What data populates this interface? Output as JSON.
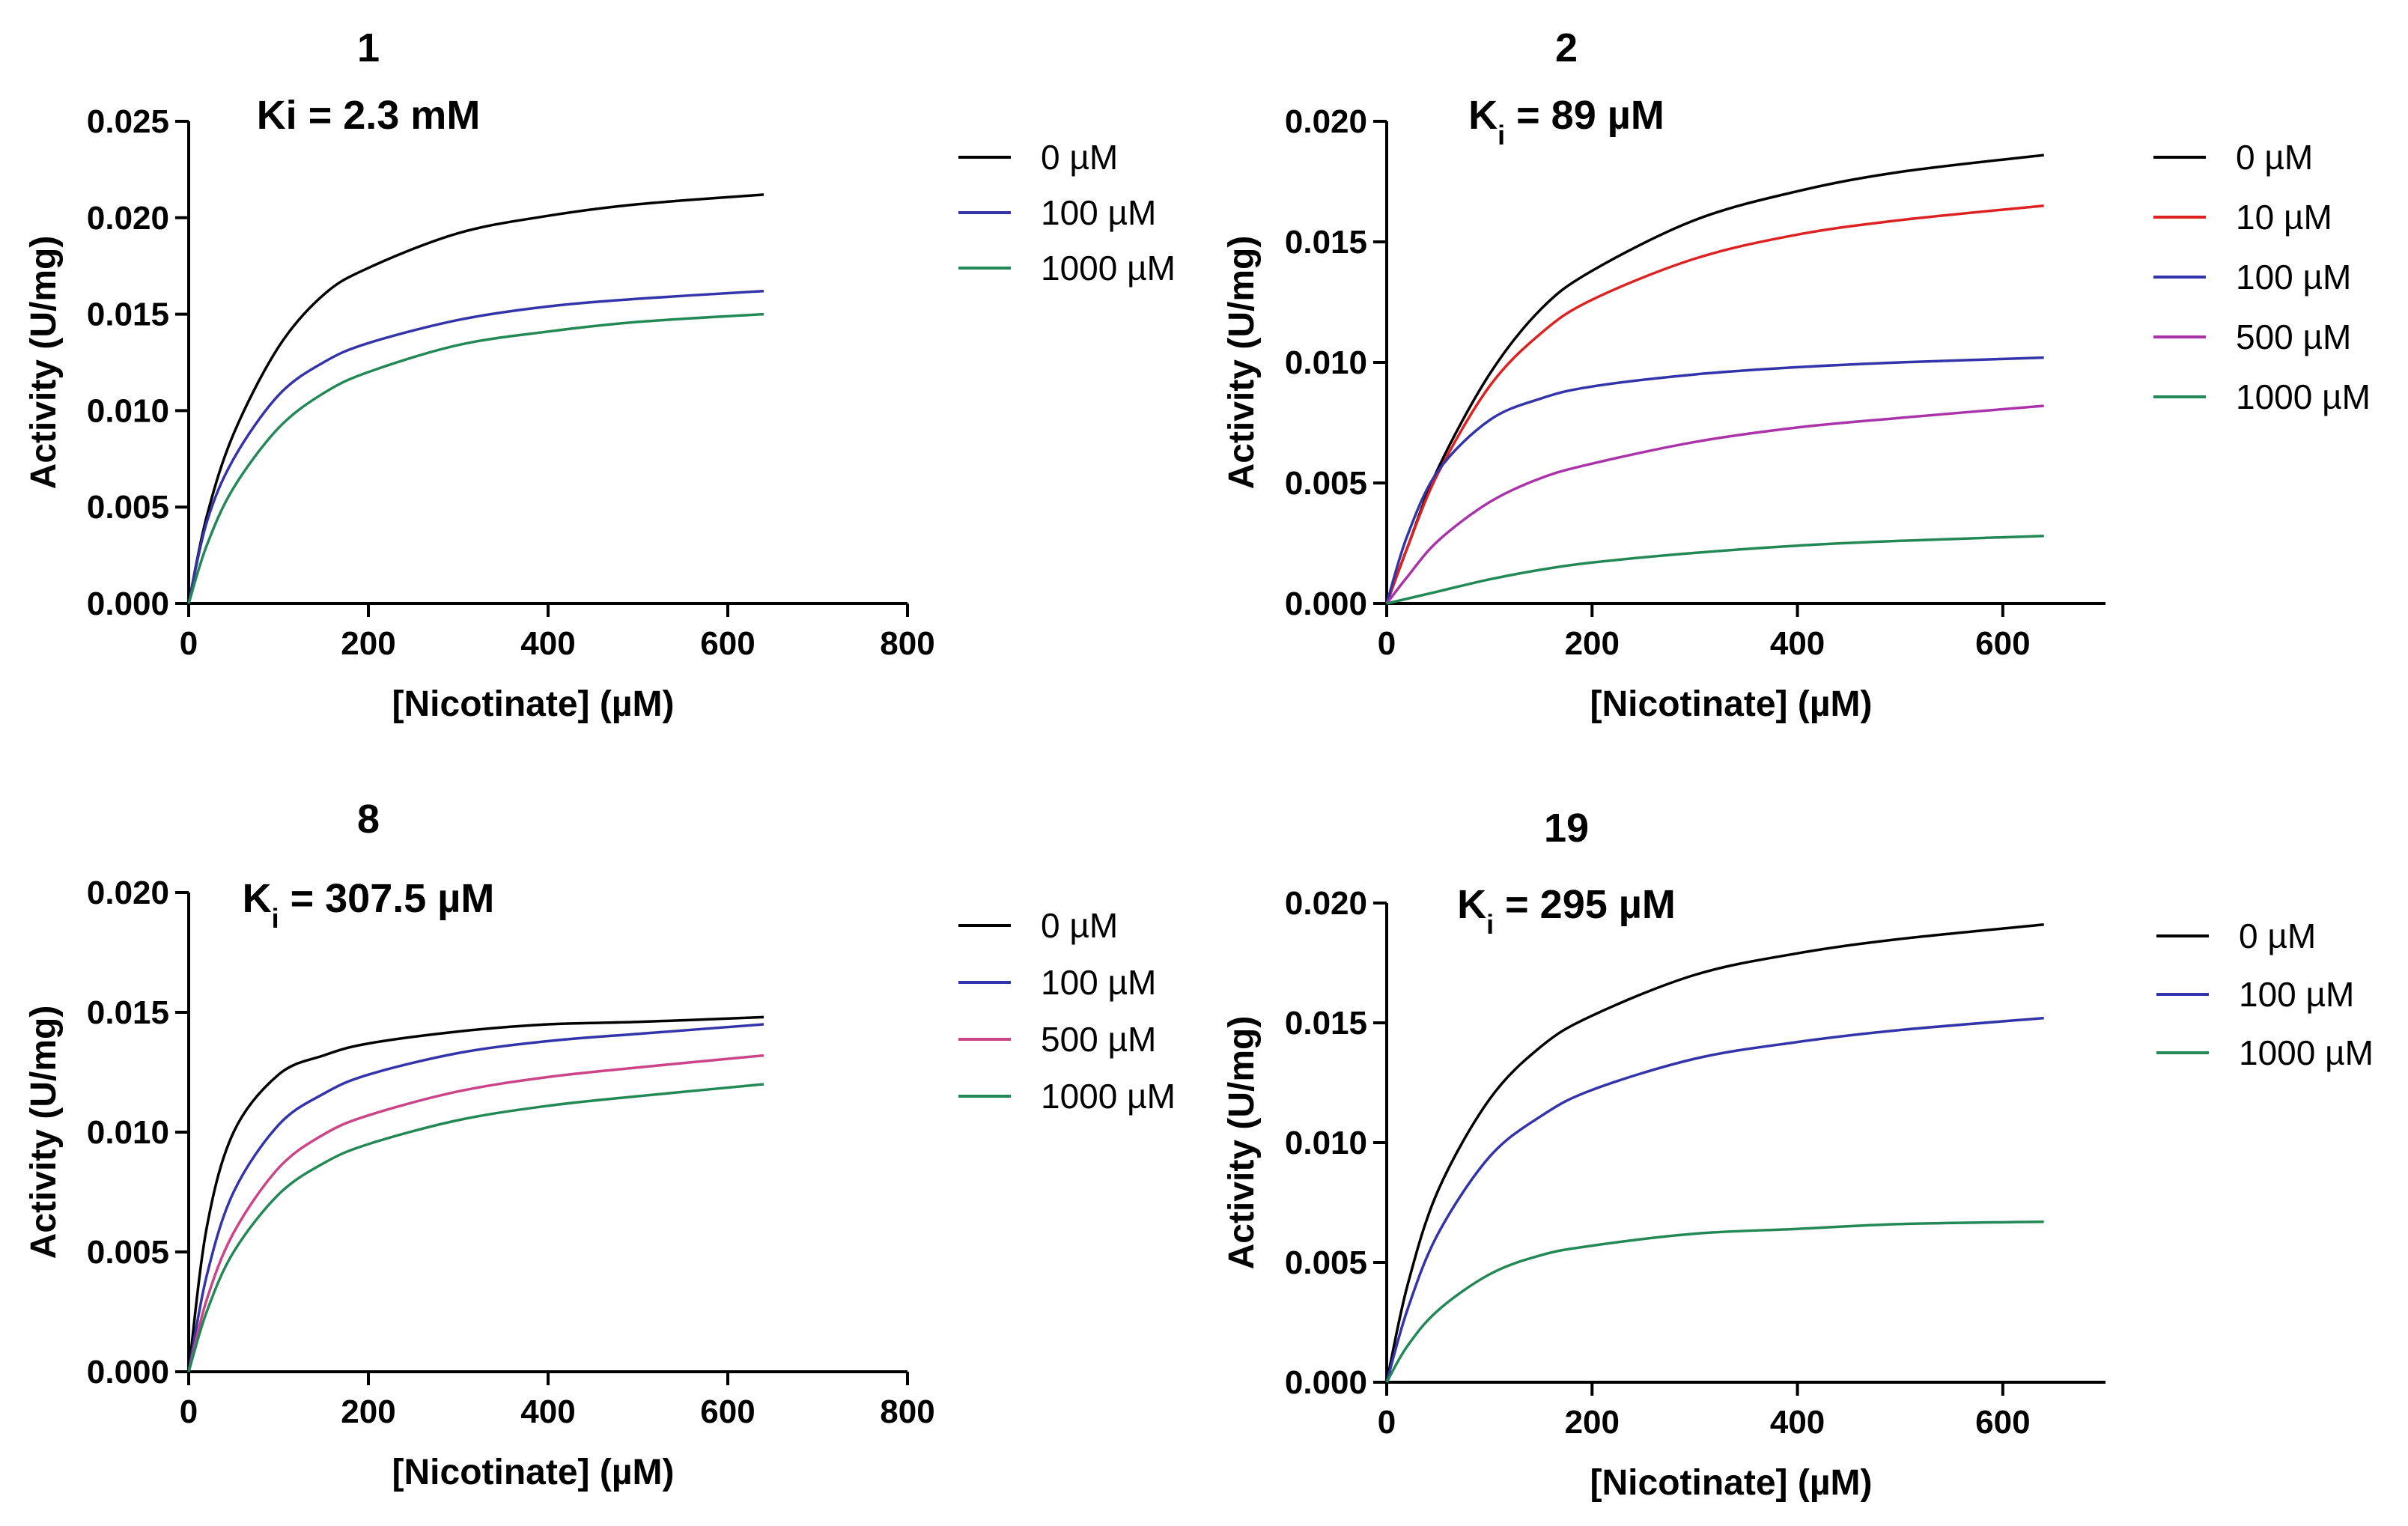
{
  "chart_data": [
    {
      "type": "line",
      "title": "1",
      "subtitle": "Ki = 2.3 mM",
      "xlabel": "[Nicotinate] (µM)",
      "ylabel": "Activity (U/mg)",
      "xlim": [
        0,
        800
      ],
      "ylim": [
        0,
        0.025
      ],
      "xticks": [
        0,
        200,
        400,
        600,
        800
      ],
      "xtick_labels": [
        "0",
        "200",
        "400",
        "600",
        "800"
      ],
      "yticks": [
        0,
        0.005,
        0.01,
        0.015,
        0.02,
        0.025
      ],
      "ytick_labels": [
        "0.000",
        "0.005",
        "0.010",
        "0.015",
        "0.020",
        "0.025"
      ],
      "x": [
        0,
        20,
        50,
        100,
        150,
        200,
        300,
        400,
        500,
        640
      ],
      "series": [
        {
          "name": "0 µM",
          "color": "#000000",
          "values": [
            0,
            0.0045,
            0.0088,
            0.0133,
            0.016,
            0.0174,
            0.0192,
            0.0201,
            0.0207,
            0.0212
          ]
        },
        {
          "name": "100 µM",
          "color": "#3333aa",
          "values": [
            0,
            0.0042,
            0.0075,
            0.0108,
            0.0125,
            0.0135,
            0.0147,
            0.0154,
            0.0158,
            0.0162
          ]
        },
        {
          "name": "1000 µM",
          "color": "#228855",
          "values": [
            0,
            0.003,
            0.006,
            0.0091,
            0.0109,
            0.012,
            0.0134,
            0.0141,
            0.0146,
            0.015
          ]
        }
      ],
      "legend": "right"
    },
    {
      "type": "line",
      "title": "2",
      "subtitle_main": "K",
      "subtitle_sub": "i",
      "subtitle_rest": " = 89 µM",
      "xlabel": "[Nicotinate] (µM)",
      "ylabel": "Activity (U/mg)",
      "xlim": [
        0,
        700
      ],
      "ylim": [
        0,
        0.02
      ],
      "xticks": [
        0,
        200,
        400,
        600
      ],
      "xtick_labels": [
        "0",
        "200",
        "400",
        "600"
      ],
      "yticks": [
        0,
        0.005,
        0.01,
        0.015,
        0.02
      ],
      "ytick_labels": [
        "0.000",
        "0.005",
        "0.010",
        "0.015",
        "0.020"
      ],
      "x": [
        0,
        20,
        50,
        100,
        150,
        200,
        300,
        400,
        500,
        640
      ],
      "series": [
        {
          "name": "0 µM",
          "color": "#000000",
          "values": [
            0,
            0.0023,
            0.0056,
            0.0095,
            0.0122,
            0.0138,
            0.0159,
            0.0171,
            0.0179,
            0.0186
          ]
        },
        {
          "name": "10 µM",
          "color": "#dd2222",
          "values": [
            0,
            0.0023,
            0.0054,
            0.009,
            0.0112,
            0.0126,
            0.0143,
            0.0153,
            0.0159,
            0.0165
          ]
        },
        {
          "name": "100 µM",
          "color": "#3333aa",
          "values": [
            0,
            0.0028,
            0.0055,
            0.0076,
            0.0085,
            0.009,
            0.0095,
            0.0098,
            0.01,
            0.0102
          ]
        },
        {
          "name": "500 µM",
          "color": "#aa33aa",
          "values": [
            0,
            0.0011,
            0.0026,
            0.0042,
            0.0052,
            0.0058,
            0.0067,
            0.0073,
            0.0077,
            0.0082
          ]
        },
        {
          "name": "1000 µM",
          "color": "#228855",
          "values": [
            0,
            0.0002,
            0.0005,
            0.001,
            0.0014,
            0.0017,
            0.0021,
            0.0024,
            0.0026,
            0.0028
          ]
        }
      ],
      "legend": "right"
    },
    {
      "type": "line",
      "title": "8",
      "subtitle_main": "K",
      "subtitle_sub": "i",
      "subtitle_rest": " = 307.5 µM",
      "xlabel": "[Nicotinate] (µM)",
      "ylabel": "Activity (U/mg)",
      "xlim": [
        0,
        800
      ],
      "ylim": [
        0,
        0.02
      ],
      "xticks": [
        0,
        200,
        400,
        600,
        800
      ],
      "xtick_labels": [
        "0",
        "200",
        "400",
        "600",
        "800"
      ],
      "yticks": [
        0,
        0.005,
        0.01,
        0.015,
        0.02
      ],
      "ytick_labels": [
        "0.000",
        "0.005",
        "0.010",
        "0.015",
        "0.020"
      ],
      "x": [
        0,
        20,
        50,
        100,
        150,
        200,
        300,
        400,
        500,
        640
      ],
      "series": [
        {
          "name": "0 µM",
          "color": "#000000",
          "values": [
            0,
            0.006,
            0.01,
            0.0124,
            0.0132,
            0.0137,
            0.0142,
            0.0145,
            0.0146,
            0.0148
          ]
        },
        {
          "name": "100 µM",
          "color": "#3333aa",
          "values": [
            0,
            0.004,
            0.0075,
            0.0103,
            0.0116,
            0.0124,
            0.0133,
            0.0138,
            0.0141,
            0.0145
          ]
        },
        {
          "name": "500 µM",
          "color": "#cc4488",
          "values": [
            0,
            0.003,
            0.0058,
            0.0085,
            0.0099,
            0.0107,
            0.0117,
            0.0123,
            0.0127,
            0.0132
          ]
        },
        {
          "name": "1000 µM",
          "color": "#228855",
          "values": [
            0,
            0.0025,
            0.005,
            0.0074,
            0.0087,
            0.0095,
            0.0105,
            0.0111,
            0.0115,
            0.012
          ]
        }
      ],
      "legend": "right"
    },
    {
      "type": "line",
      "title": "19",
      "subtitle_main": "K",
      "subtitle_sub": "i",
      "subtitle_rest": " = 295 µM",
      "xlabel": "[Nicotinate] (µM)",
      "ylabel": "Activity (U/mg)",
      "xlim": [
        0,
        700
      ],
      "ylim": [
        0,
        0.02
      ],
      "xticks": [
        0,
        200,
        400,
        600
      ],
      "xtick_labels": [
        "0",
        "200",
        "400",
        "600"
      ],
      "yticks": [
        0,
        0.005,
        0.01,
        0.015,
        0.02
      ],
      "ytick_labels": [
        "0.000",
        "0.005",
        "0.010",
        "0.015",
        "0.020"
      ],
      "x": [
        0,
        20,
        50,
        100,
        150,
        200,
        300,
        400,
        500,
        640
      ],
      "series": [
        {
          "name": "0 µM",
          "color": "#000000",
          "values": [
            0,
            0.004,
            0.008,
            0.0118,
            0.014,
            0.0153,
            0.017,
            0.0179,
            0.0185,
            0.0191
          ]
        },
        {
          "name": "100 µM",
          "color": "#3333aa",
          "values": [
            0,
            0.003,
            0.0062,
            0.0094,
            0.0111,
            0.0122,
            0.0135,
            0.0142,
            0.0147,
            0.0152
          ]
        },
        {
          "name": "1000 µM",
          "color": "#228855",
          "values": [
            0,
            0.0015,
            0.003,
            0.0045,
            0.0053,
            0.0057,
            0.0062,
            0.0064,
            0.0066,
            0.0067
          ]
        }
      ],
      "legend": "right"
    }
  ]
}
